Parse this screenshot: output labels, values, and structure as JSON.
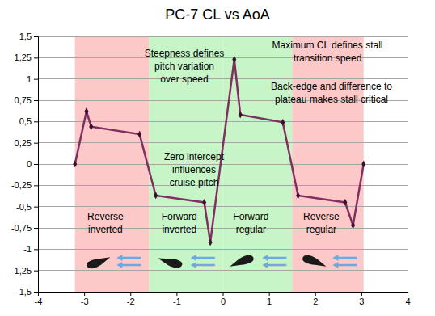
{
  "chart_data": {
    "type": "line",
    "title": "PC-7 CL vs AoA",
    "x": [
      -3.2,
      -2.95,
      -2.85,
      -1.8,
      -1.45,
      -0.4,
      -0.27,
      0.25,
      0.38,
      1.3,
      1.63,
      2.65,
      2.82,
      3.05
    ],
    "values": [
      0,
      0.62,
      0.44,
      0.35,
      -0.37,
      -0.45,
      -0.92,
      1.23,
      0.58,
      0.49,
      -0.37,
      -0.45,
      -0.72,
      0
    ],
    "color": "#803060",
    "marker": "diamond",
    "xlim": [
      -4,
      4
    ],
    "xticks": [
      -4,
      -3,
      -2,
      -1,
      0,
      1,
      2,
      3,
      4
    ],
    "ylim": [
      -1.5,
      1.5
    ],
    "yticks": [
      {
        "value": -1.5,
        "label": "-1,5"
      },
      {
        "value": -1.25,
        "label": "-1,25"
      },
      -1,
      {
        "value": -0.75,
        "label": "-0,75"
      },
      {
        "value": -0.5,
        "label": "-0,5"
      },
      {
        "value": -0.25,
        "label": "-0,25"
      },
      0,
      {
        "value": 0.25,
        "label": "0,25"
      },
      {
        "value": 0.5,
        "label": "0,5"
      },
      {
        "value": 0.75,
        "label": "0,75"
      },
      1,
      {
        "value": 1.25,
        "label": "1,25"
      },
      {
        "value": 1.5,
        "label": "1,5"
      }
    ],
    "grid": true,
    "regions": [
      {
        "label": "Reverse\ninverted",
        "from": -3.2,
        "to": -1.6,
        "color": "#fcc8c8"
      },
      {
        "label": "Forward\ninverted",
        "from": -1.6,
        "to": 0,
        "color": "#c8f5c8"
      },
      {
        "label": "Forward\nregular",
        "from": 0,
        "to": 1.5,
        "color": "#c8f5c8"
      },
      {
        "label": "Reverse\nregular",
        "from": 1.5,
        "to": 3.05,
        "color": "#fcc8c8"
      }
    ],
    "annotations": [
      "Steepness defines\npitch variation\nover speed",
      "Maximum CL defines stall\ntransition speed",
      "Back-edge and difference to\nplateau makes stall critical",
      "Zero intercept\ninfluences\ncruise pitch"
    ]
  }
}
